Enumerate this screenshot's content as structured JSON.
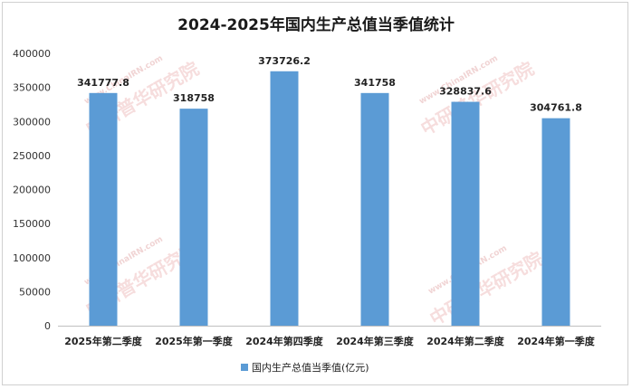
{
  "chart_data": {
    "type": "bar",
    "title": "2024-2025年国内生产总值当季值统计",
    "categories": [
      "2025年第二季度",
      "2025年第一季度",
      "2024年第四季度",
      "2024年第三季度",
      "2024年第二季度",
      "2024年第一季度"
    ],
    "series": [
      {
        "name": "国内生产总值当季值(亿元)",
        "values": [
          341777.8,
          318758,
          373726.2,
          341758,
          328837.6,
          304761.8
        ],
        "labels": [
          "341777.8",
          "318758",
          "373726.2",
          "341758",
          "328837.6",
          "304761.8"
        ],
        "color": "#5b9bd5"
      }
    ],
    "yticks": [
      "0",
      "50000",
      "100000",
      "150000",
      "200000",
      "250000",
      "300000",
      "350000",
      "400000"
    ],
    "ylim": [
      0,
      400000
    ],
    "grid": false,
    "legend_position": "bottom"
  },
  "watermark": {
    "brand": "中研普华研究院",
    "url": "www.ChinaIRN.com"
  }
}
